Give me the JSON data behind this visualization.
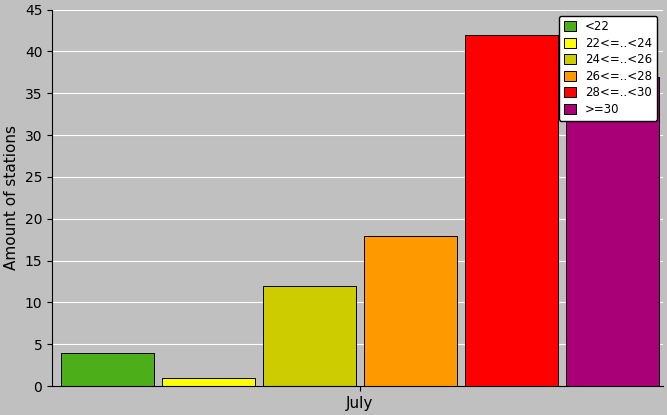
{
  "categories": [
    "<22",
    "22<=..<24",
    "24<=..<26",
    "26<=..<28",
    "28<=..<30",
    ">=30"
  ],
  "values": [
    4,
    1,
    12,
    18,
    42,
    37
  ],
  "bar_colors": [
    "#4caf1a",
    "#ffff00",
    "#cccc00",
    "#ff9900",
    "#ff0000",
    "#aa0077"
  ],
  "xlabel": "July",
  "ylabel": "Amount of stations",
  "ylim": [
    0,
    45
  ],
  "yticks": [
    0,
    5,
    10,
    15,
    20,
    25,
    30,
    35,
    40,
    45
  ],
  "background_color": "#c0c0c0",
  "plot_bg_color": "#c0c0c0",
  "legend_labels": [
    "<22",
    "22<=..<24",
    "24<=..<26",
    "26<=..<28",
    "28<=..<30",
    ">=30"
  ],
  "figsize": [
    6.67,
    4.15
  ],
  "dpi": 100
}
